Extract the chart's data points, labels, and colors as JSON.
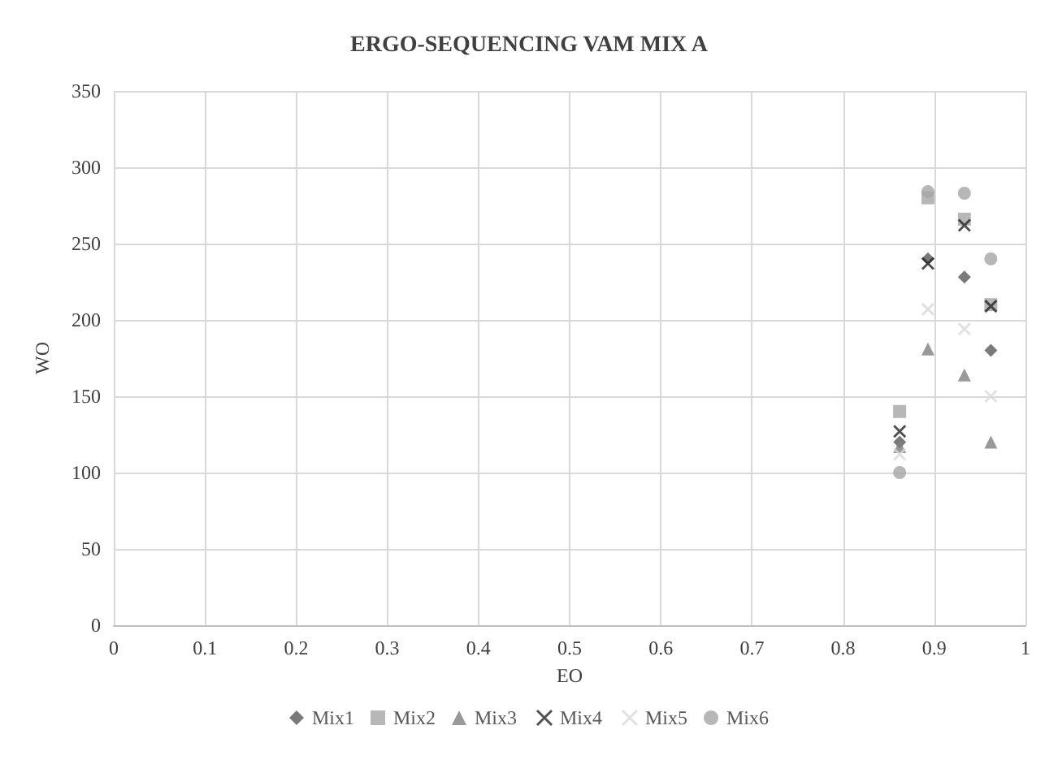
{
  "chart_data": {
    "type": "scatter",
    "title": "ERGO-SEQUENCING VAM MIX A",
    "xlabel": "EO",
    "ylabel": "WO",
    "xlim": [
      0,
      1
    ],
    "xticks": [
      0,
      0.1,
      0.2,
      0.3,
      0.4,
      0.5,
      0.6,
      0.7,
      0.8,
      0.9,
      1
    ],
    "ylim": [
      0,
      350
    ],
    "yticks": [
      0,
      50,
      100,
      150,
      200,
      250,
      300,
      350
    ],
    "grid": true,
    "legend": "bottom",
    "x": [
      0.862,
      0.893,
      0.933,
      0.962
    ],
    "series": [
      {
        "name": "Mix1",
        "color": "#595959",
        "marker": "diamond",
        "values": [
          120,
          240,
          228,
          180
        ]
      },
      {
        "name": "Mix2",
        "color": "#a5a5a5",
        "marker": "square",
        "values": [
          140,
          280,
          266,
          210
        ]
      },
      {
        "name": "Mix3",
        "color": "#7f7f7f",
        "marker": "triangle",
        "values": [
          117,
          181,
          164,
          120
        ]
      },
      {
        "name": "Mix4",
        "color": "#262626",
        "marker": "cross",
        "values": [
          127,
          237,
          262,
          209
        ]
      },
      {
        "name": "Mix5",
        "color": "#d9d9d9",
        "marker": "cross",
        "values": [
          112,
          207,
          194,
          150
        ]
      },
      {
        "name": "Mix6",
        "color": "#a5a5a5",
        "marker": "circle",
        "values": [
          100,
          284,
          283,
          240
        ]
      }
    ]
  }
}
